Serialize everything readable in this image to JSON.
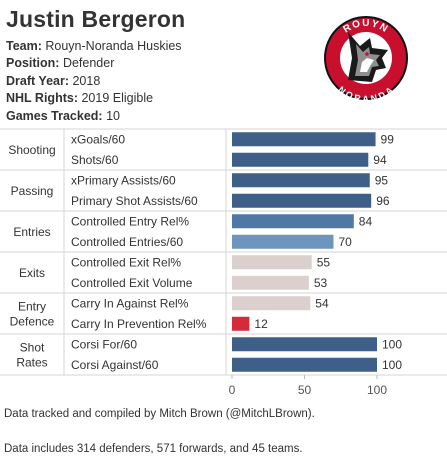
{
  "player": {
    "name": "Justin Bergeron",
    "team_label": "Team:",
    "team": "Rouyn-Noranda Huskies",
    "position_label": "Position:",
    "position": "Defender",
    "draft_label": "Draft Year:",
    "draft_year": "2018",
    "rights_label": "NHL Rights:",
    "rights": "2019 Eligible",
    "games_label": "Games Tracked:",
    "games": "10"
  },
  "logo": {
    "top_text": "ROUYN",
    "bottom_text": "NORANDA"
  },
  "chart_data": {
    "type": "bar",
    "orientation": "horizontal",
    "xlim": [
      0,
      100
    ],
    "xticks": [
      0,
      50,
      100
    ],
    "groups": [
      {
        "name": "Shooting",
        "metrics": [
          {
            "label": "xGoals/60",
            "value": 99,
            "color": "#3e5f87"
          },
          {
            "label": "Shots/60",
            "value": 94,
            "color": "#3e5f87"
          }
        ]
      },
      {
        "name": "Passing",
        "metrics": [
          {
            "label": "xPrimary Assists/60",
            "value": 95,
            "color": "#3e5f87"
          },
          {
            "label": "Primary Shot Assists/60",
            "value": 96,
            "color": "#3e5f87"
          }
        ]
      },
      {
        "name": "Entries",
        "metrics": [
          {
            "label": "Controlled Entry Rel%",
            "value": 84,
            "color": "#4f78a4"
          },
          {
            "label": "Controlled Entries/60",
            "value": 70,
            "color": "#6d95be"
          }
        ]
      },
      {
        "name": "Exits",
        "metrics": [
          {
            "label": "Controlled Exit Rel%",
            "value": 55,
            "color": "#dcd0cf"
          },
          {
            "label": "Controlled Exit Volume",
            "value": 53,
            "color": "#dcd0cf"
          }
        ]
      },
      {
        "name": "Entry Defence",
        "name_lines": [
          "Entry",
          "Defence"
        ],
        "metrics": [
          {
            "label": "Carry In Against Rel%",
            "value": 54,
            "color": "#dcd0cf"
          },
          {
            "label": "Carry In Prevention Rel%",
            "value": 12,
            "color": "#d42a3a"
          }
        ]
      },
      {
        "name": "Shot Rates",
        "name_lines": [
          "Shot",
          "Rates"
        ],
        "metrics": [
          {
            "label": "Corsi For/60",
            "value": 100,
            "color": "#3e5f87"
          },
          {
            "label": "Corsi Against/60",
            "value": 100,
            "color": "#3e5f87"
          }
        ]
      }
    ]
  },
  "notes": [
    "Data tracked and compiled by Mitch Brown (@MitchLBrown).",
    "Data includes 314 defenders, 571 forwards, and 45 teams."
  ]
}
